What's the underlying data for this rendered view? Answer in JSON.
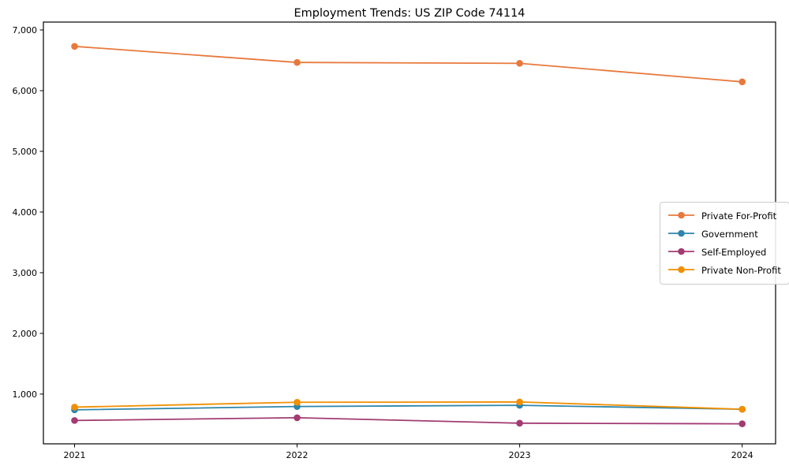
{
  "chart_data": {
    "type": "line",
    "title": "Employment Trends: US ZIP Code 74114",
    "xlabel": "",
    "ylabel": "",
    "x": [
      2021,
      2022,
      2023,
      2024
    ],
    "xticklabels": [
      "2021",
      "2022",
      "2023",
      "2024"
    ],
    "yticks": [
      1000,
      2000,
      3000,
      4000,
      5000,
      6000,
      7000
    ],
    "yticklabels": [
      "1,000",
      "2,000",
      "3,000",
      "4,000",
      "5,000",
      "6,000",
      "7,000"
    ],
    "xlim": [
      2020.86,
      2024.15
    ],
    "ylim": [
      180,
      7130
    ],
    "grid": false,
    "marker": "circle",
    "legend_position": "center-right",
    "axis_color": "#000000",
    "series": [
      {
        "name": "Private For-Profit",
        "color": "#E8793D",
        "values": [
          6730,
          6465,
          6450,
          6145
        ]
      },
      {
        "name": "Government",
        "color": "#2E86AB",
        "values": [
          740,
          795,
          815,
          750
        ]
      },
      {
        "name": "Self-Employed",
        "color": "#A23B72",
        "values": [
          565,
          610,
          520,
          510
        ]
      },
      {
        "name": "Private Non-Profit",
        "color": "#F18F01",
        "values": [
          785,
          865,
          870,
          750
        ]
      }
    ]
  }
}
